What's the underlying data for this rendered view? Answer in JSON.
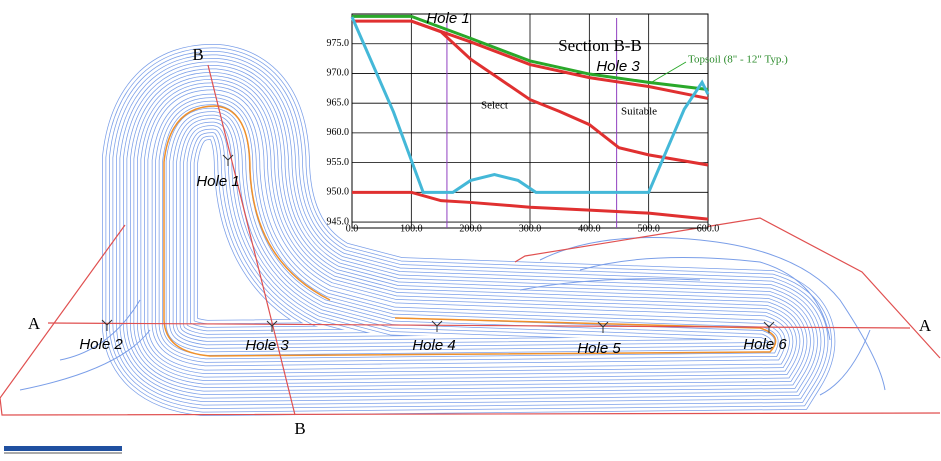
{
  "plan": {
    "section_a": [
      "A",
      "A"
    ],
    "section_b": [
      "B",
      "B"
    ],
    "holes": [
      "Hole 1",
      "Hole 2",
      "Hole 3",
      "Hole 4",
      "Hole 5",
      "Hole 6"
    ]
  },
  "section_chart": {
    "type": "line",
    "title": "Section B-B",
    "xlim": [
      0,
      600
    ],
    "ylim": [
      944,
      980
    ],
    "xticks": [
      {
        "value": 0,
        "label": "0.0"
      },
      {
        "value": 100,
        "label": "100.0"
      },
      {
        "value": 200,
        "label": "200.0"
      },
      {
        "value": 300,
        "label": "300.0"
      },
      {
        "value": 400,
        "label": "400.0"
      },
      {
        "value": 500,
        "label": "500.0"
      },
      {
        "value": 600,
        "label": "600.0"
      }
    ],
    "yticks": [
      {
        "value": 945,
        "label": "945.0"
      },
      {
        "value": 950,
        "label": "950.0"
      },
      {
        "value": 955,
        "label": "955.0"
      },
      {
        "value": 960,
        "label": "960.0"
      },
      {
        "value": 965,
        "label": "965.0"
      },
      {
        "value": 970,
        "label": "970.0"
      },
      {
        "value": 975,
        "label": "975.0"
      }
    ],
    "series": [
      {
        "color": "#2aa82a",
        "x": [
          0,
          100,
          200,
          300,
          400,
          500,
          600
        ],
        "values": [
          979.6,
          979.6,
          975.9,
          972.1,
          969.9,
          968.5,
          967.3
        ]
      },
      {
        "color": "#e03030",
        "x": [
          0,
          100,
          200,
          300,
          400,
          500,
          600
        ],
        "values": [
          978.8,
          978.8,
          975.3,
          971.5,
          969.3,
          967.8,
          965.8
        ]
      },
      {
        "color": "#e03030",
        "x": [
          100,
          150,
          200,
          250,
          300,
          350,
          400,
          450,
          500,
          600
        ],
        "values": [
          978.8,
          977,
          972.4,
          969,
          965.6,
          963.6,
          961.4,
          957.5,
          956.3,
          954.6
        ]
      },
      {
        "color": "#e03030",
        "x": [
          0,
          100,
          150,
          200,
          300,
          400,
          500,
          600
        ],
        "values": [
          950,
          950,
          948.6,
          948.3,
          947.5,
          947,
          946.5,
          945.5
        ]
      },
      {
        "color": "#44b8d8",
        "x": [
          0,
          70,
          120,
          170,
          200,
          240,
          280,
          310,
          500,
          560,
          590,
          600
        ],
        "values": [
          979.5,
          963.5,
          950,
          950,
          952,
          953,
          952,
          950,
          950,
          964,
          968.5,
          966.5
        ]
      }
    ],
    "holes": [
      {
        "label": "Hole 1",
        "x": 160
      },
      {
        "label": "Hole 3",
        "x": 446
      }
    ],
    "annotations": [
      "Topsoil (8\" - 12\" Typ.)",
      "Select",
      "Suitable"
    ]
  }
}
